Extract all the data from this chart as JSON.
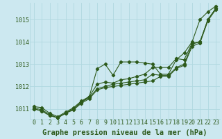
{
  "bg_color": "#cce8f0",
  "line_color": "#2d5a1b",
  "grid_color": "#b0d8e0",
  "xlabel": "Graphe pression niveau de la mer (hPa)",
  "xlabel_fontsize": 7.5,
  "tick_fontsize": 6.0,
  "ylim": [
    1010.55,
    1015.75
  ],
  "xlim": [
    -0.5,
    23.5
  ],
  "series": [
    [
      1011.1,
      1011.05,
      1010.8,
      1010.65,
      1010.85,
      1011.05,
      1011.35,
      1011.55,
      1012.8,
      1013.0,
      1012.5,
      1013.1,
      1013.1,
      1013.1,
      1013.05,
      1013.0,
      1012.55,
      1012.55,
      1013.2,
      1013.5,
      1014.0,
      1015.0,
      1015.35,
      1015.6
    ],
    [
      1011.05,
      1010.95,
      1010.75,
      1010.6,
      1010.8,
      1011.0,
      1011.3,
      1011.55,
      1012.1,
      1012.2,
      1012.15,
      1012.3,
      1012.35,
      1012.45,
      1012.55,
      1012.85,
      1012.85,
      1012.85,
      1013.25,
      1013.2,
      1013.95,
      1014.0,
      1015.0,
      1015.5
    ],
    [
      1011.0,
      1010.9,
      1010.7,
      1010.6,
      1010.8,
      1011.0,
      1011.3,
      1011.5,
      1011.9,
      1012.0,
      1012.1,
      1012.15,
      1012.2,
      1012.25,
      1012.3,
      1012.55,
      1012.5,
      1012.5,
      1012.85,
      1013.0,
      1013.9,
      1014.0,
      1015.0,
      1015.5
    ],
    [
      1011.0,
      1010.9,
      1010.7,
      1010.6,
      1010.8,
      1010.95,
      1011.25,
      1011.45,
      1011.85,
      1011.95,
      1012.0,
      1012.05,
      1012.1,
      1012.15,
      1012.2,
      1012.25,
      1012.45,
      1012.45,
      1012.8,
      1012.95,
      1013.8,
      1013.95,
      1014.95,
      1015.45
    ]
  ],
  "yticks": [
    1011,
    1012,
    1013,
    1014,
    1015
  ],
  "xticks": [
    0,
    1,
    2,
    3,
    4,
    5,
    6,
    7,
    8,
    9,
    10,
    11,
    12,
    13,
    14,
    15,
    16,
    17,
    18,
    19,
    20,
    21,
    22,
    23
  ]
}
